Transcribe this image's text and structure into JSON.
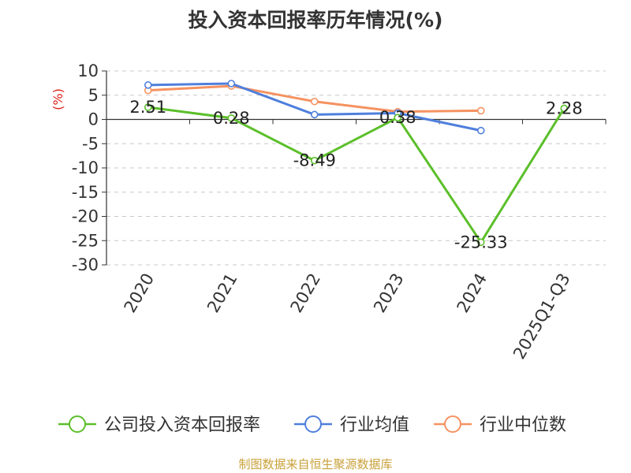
{
  "chart_data": {
    "type": "line",
    "title": "投入资本回报率历年情况(%)",
    "ylabel": "(%)",
    "categories": [
      "2020",
      "2021",
      "2022",
      "2023",
      "2024",
      "2025Q1-Q3"
    ],
    "ylim": [
      -30,
      10
    ],
    "yticks": [
      10,
      5,
      0,
      -5,
      -10,
      -15,
      -20,
      -25,
      -30
    ],
    "grid": true,
    "legend_position": "bottom",
    "series": [
      {
        "name": "公司投入资本回报率",
        "color": "#5bbf2a",
        "values": [
          2.51,
          0.28,
          -8.49,
          0.38,
          -25.33,
          2.28
        ],
        "labels": [
          "2.51",
          "0.28",
          "-8.49",
          "0.38",
          "-25.33",
          "2.28"
        ]
      },
      {
        "name": "行业均值",
        "color": "#4f7fdc",
        "values": [
          7.1,
          7.4,
          1.0,
          1.3,
          -2.3,
          null
        ]
      },
      {
        "name": "行业中位数",
        "color": "#f59261",
        "values": [
          6.0,
          6.9,
          3.7,
          1.6,
          1.8,
          null
        ]
      }
    ]
  },
  "footer": {
    "source": "制图数据来自恒生聚源数据库"
  }
}
